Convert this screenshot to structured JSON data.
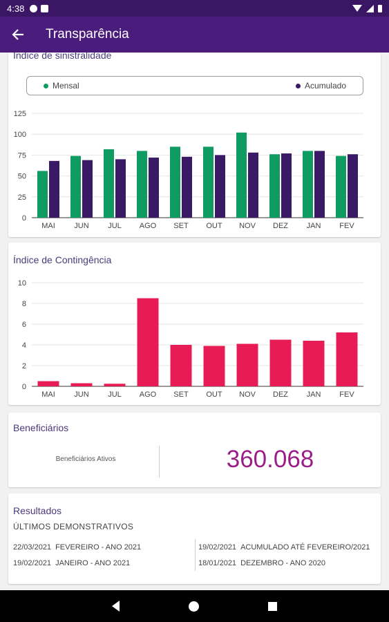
{
  "status_bar": {
    "time": "4:38"
  },
  "app_bar": {
    "back_icon": "arrow-left-icon",
    "title": "Transparência"
  },
  "sinistralidade": {
    "title": "Índice de sinistralidade",
    "legend": {
      "mensal": "Mensal",
      "acumulado": "Acumulado"
    },
    "colors": {
      "mensal": "#0e9c63",
      "acumulado": "#3a1966"
    }
  },
  "contingencia": {
    "title": "Índice de Contingência",
    "color": "#e81c55"
  },
  "beneficiarios": {
    "title": "Beneficiários",
    "label": "Beneficiários Ativos",
    "value": "360.068"
  },
  "resultados": {
    "title": "Resultados",
    "subtitle": "ÚLTIMOS DEMONSTRATIVOS",
    "items": [
      {
        "date": "22/03/2021",
        "label": "FEVEREIRO - ANO 2021"
      },
      {
        "date": "19/02/2021",
        "label": "JANEIRO - ANO 2021"
      },
      {
        "date": "19/02/2021",
        "label": "ACUMULADO ATÉ FEVEREIRO/2021"
      },
      {
        "date": "18/01/2021",
        "label": "DEZEMBRO - ANO 2020"
      }
    ]
  },
  "chart_data": [
    {
      "type": "bar",
      "title": "Índice de sinistralidade",
      "categories": [
        "MAI",
        "JUN",
        "JUL",
        "AGO",
        "SET",
        "OUT",
        "NOV",
        "DEZ",
        "JAN",
        "FEV"
      ],
      "series": [
        {
          "name": "Mensal",
          "values": [
            56,
            74,
            82,
            80,
            85,
            85,
            102,
            76,
            80,
            74
          ]
        },
        {
          "name": "Acumulado",
          "values": [
            68,
            69,
            70,
            72,
            73,
            75,
            78,
            77,
            80,
            76
          ]
        }
      ],
      "ylim": [
        0,
        125
      ],
      "yticks": [
        0,
        25,
        50,
        75,
        100,
        125
      ],
      "grid": true,
      "legend": "top"
    },
    {
      "type": "bar",
      "title": "Índice de Contingência",
      "categories": [
        "MAI",
        "JUN",
        "JUL",
        "AGO",
        "SET",
        "OUT",
        "NOV",
        "DEZ",
        "JAN",
        "FEV"
      ],
      "values": [
        0.5,
        0.3,
        0.25,
        8.5,
        4.0,
        3.9,
        4.1,
        4.5,
        4.4,
        5.2
      ],
      "ylim": [
        0,
        10
      ],
      "yticks": [
        0,
        2,
        4,
        6,
        8,
        10
      ],
      "grid": true
    }
  ],
  "nav_bar": {
    "back_icon": "nav-back-icon",
    "home_icon": "nav-home-icon",
    "recent_icon": "nav-recent-icon"
  }
}
